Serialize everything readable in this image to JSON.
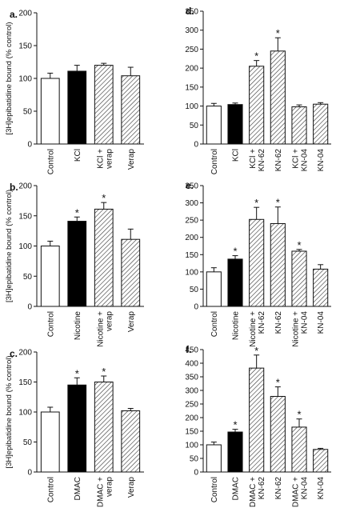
{
  "chart_data": [
    {
      "type": "bar",
      "panel": "a.",
      "ylabel": "[3H]epibatidine bound (% control)",
      "ylim": [
        0,
        200
      ],
      "yticks": [
        0,
        50,
        100,
        150,
        200
      ],
      "categories": [
        "Control",
        "KCl",
        "KCl + verap",
        "Verap"
      ],
      "values": [
        100,
        111,
        120,
        104
      ],
      "errors": [
        8,
        9,
        3,
        13
      ],
      "fills": [
        "white",
        "black",
        "hatched",
        "hatched"
      ],
      "significant": [
        false,
        false,
        false,
        false
      ]
    },
    {
      "type": "bar",
      "panel": "d.",
      "ylabel": "",
      "ylim": [
        0,
        350
      ],
      "yticks": [
        0,
        50,
        100,
        150,
        200,
        250,
        300,
        350
      ],
      "categories": [
        "Control",
        "KCl",
        "KCl + KN-62",
        "KN-62",
        "KCl + KN-04",
        "KN-04"
      ],
      "values": [
        100,
        104,
        205,
        245,
        98,
        105
      ],
      "errors": [
        7,
        4,
        15,
        35,
        5,
        4
      ],
      "fills": [
        "white",
        "black",
        "hatched",
        "hatched",
        "hatched",
        "hatched"
      ],
      "significant": [
        false,
        false,
        true,
        true,
        false,
        false
      ]
    },
    {
      "type": "bar",
      "panel": "b.",
      "ylabel": "[3H]epibatidine bound (% control)",
      "ylim": [
        0,
        200
      ],
      "yticks": [
        0,
        50,
        100,
        150,
        200
      ],
      "categories": [
        "Control",
        "Nicotine",
        "Nicotine + verap",
        "Verap"
      ],
      "values": [
        100,
        141,
        161,
        111
      ],
      "errors": [
        8,
        7,
        11,
        17
      ],
      "fills": [
        "white",
        "black",
        "hatched",
        "hatched"
      ],
      "significant": [
        false,
        true,
        true,
        false
      ]
    },
    {
      "type": "bar",
      "panel": "e.",
      "ylabel": "",
      "ylim": [
        0,
        350
      ],
      "yticks": [
        0,
        50,
        100,
        150,
        200,
        250,
        300,
        350
      ],
      "categories": [
        "Control",
        "Nicotine",
        "Nicotine + KN-62",
        "KN-62",
        "Nicotine + KN-04",
        "KN-04"
      ],
      "values": [
        100,
        137,
        252,
        240,
        160,
        108
      ],
      "errors": [
        12,
        10,
        35,
        48,
        5,
        13
      ],
      "fills": [
        "white",
        "black",
        "hatched",
        "hatched",
        "hatched",
        "hatched"
      ],
      "significant": [
        false,
        true,
        true,
        true,
        true,
        false
      ]
    },
    {
      "type": "bar",
      "panel": "c.",
      "ylabel": "[3H]epibatidine bound (% control)",
      "ylim": [
        0,
        200
      ],
      "yticks": [
        0,
        50,
        100,
        150,
        200
      ],
      "categories": [
        "Control",
        "DMAC",
        "DMAC + verap",
        "Verap"
      ],
      "values": [
        100,
        145,
        150,
        102
      ],
      "errors": [
        8,
        12,
        10,
        4
      ],
      "fills": [
        "white",
        "black",
        "hatched",
        "hatched"
      ],
      "significant": [
        false,
        true,
        true,
        false
      ]
    },
    {
      "type": "bar",
      "panel": "f.",
      "ylabel": "",
      "ylim": [
        0,
        450
      ],
      "yticks": [
        0,
        50,
        100,
        150,
        200,
        250,
        300,
        350,
        400,
        450
      ],
      "categories": [
        "Control",
        "DMAC",
        "DMAC + KN-62",
        "KN-62",
        "DMAC + KN-04",
        "KN-04"
      ],
      "values": [
        100,
        147,
        382,
        278,
        165,
        83
      ],
      "errors": [
        10,
        10,
        48,
        35,
        30,
        4
      ],
      "fills": [
        "white",
        "black",
        "hatched",
        "hatched",
        "hatched",
        "hatched"
      ],
      "significant": [
        false,
        true,
        true,
        true,
        true,
        false
      ]
    }
  ]
}
